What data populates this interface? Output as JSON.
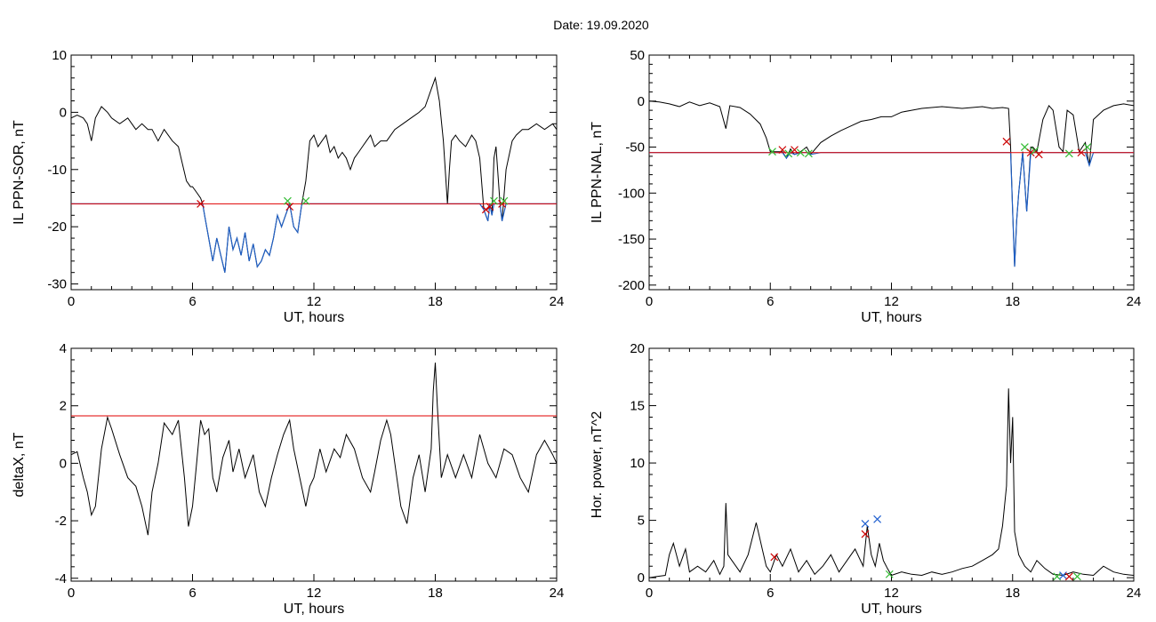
{
  "date_label": "Date:  19.09.2020",
  "colors": {
    "trace": "#000000",
    "below_threshold": "#1f5fc4",
    "threshold": "#e00000",
    "marker_red": "#cc0000",
    "marker_green": "#33bb33",
    "marker_blue": "#2060d0"
  },
  "chart_data": [
    {
      "type": "line",
      "title": "",
      "xlabel": "UT, hours",
      "ylabel": "IL PPN-SOR, nT",
      "xlim": [
        0,
        24
      ],
      "ylim": [
        -31,
        10
      ],
      "xticks": [
        0,
        6,
        12,
        18,
        24
      ],
      "yticks": [
        -30,
        -20,
        -10,
        0,
        10
      ],
      "threshold": -16,
      "series": [
        {
          "x": [
            0,
            0.3,
            0.6,
            0.8,
            1.0,
            1.2,
            1.5,
            1.8,
            2.0,
            2.4,
            2.8,
            3.2,
            3.5,
            3.8,
            4.0,
            4.3,
            4.6,
            5.0,
            5.3,
            5.5,
            5.7,
            5.9,
            6.0,
            6.2,
            6.4,
            6.5,
            6.6,
            6.8,
            7.0,
            7.2,
            7.4,
            7.6,
            7.8,
            8.0,
            8.2,
            8.4,
            8.6,
            8.8,
            9.0,
            9.2,
            9.4,
            9.6,
            9.8,
            10.0,
            10.2,
            10.4,
            10.6,
            10.8,
            11.0,
            11.2,
            11.4,
            11.6,
            11.8,
            12.0,
            12.2,
            12.4,
            12.6,
            12.8,
            13.0,
            13.2,
            13.4,
            13.6,
            13.8,
            14.0,
            14.2,
            14.4,
            14.6,
            14.8,
            15.0,
            15.3,
            15.6,
            16.0,
            16.4,
            16.8,
            17.2,
            17.5,
            17.8,
            18.0,
            18.2,
            18.4,
            18.6,
            18.7,
            18.8,
            19.0,
            19.2,
            19.5,
            19.8,
            20.0,
            20.2,
            20.4,
            20.5,
            20.6,
            20.7,
            20.8,
            20.9,
            21.0,
            21.2,
            21.3,
            21.5,
            21.8,
            22.0,
            22.3,
            22.6,
            23.0,
            23.4,
            23.8,
            24
          ],
          "values": [
            -1,
            -0.5,
            -1,
            -2,
            -5,
            -1,
            1,
            0,
            -1,
            -2,
            -1,
            -3,
            -2,
            -3,
            -3,
            -5,
            -3,
            -5,
            -6,
            -9,
            -12,
            -13,
            -13,
            -14,
            -15,
            -16,
            -18,
            -22,
            -26,
            -22,
            -25,
            -28,
            -20,
            -24,
            -22,
            -25,
            -21,
            -26,
            -23,
            -27,
            -26,
            -24,
            -25,
            -22,
            -18,
            -20,
            -18,
            -16,
            -20,
            -21,
            -16,
            -12,
            -5,
            -4,
            -6,
            -5,
            -4,
            -7,
            -6,
            -8,
            -7,
            -8,
            -10,
            -8,
            -7,
            -6,
            -5,
            -4,
            -6,
            -5,
            -5,
            -3,
            -2,
            -1,
            0,
            1,
            4,
            6,
            2,
            -5,
            -16,
            -10,
            -5,
            -4,
            -5,
            -6,
            -4,
            -5,
            -8,
            -17,
            -18,
            -19,
            -16,
            -18,
            -8,
            -6,
            -16,
            -19,
            -10,
            -5,
            -4,
            -3,
            -3,
            -2,
            -3,
            -2,
            -3
          ]
        }
      ],
      "markers": [
        {
          "x": 6.4,
          "y": -16,
          "color": "red"
        },
        {
          "x": 10.7,
          "y": -15.5,
          "color": "green"
        },
        {
          "x": 10.8,
          "y": -16.5,
          "color": "red"
        },
        {
          "x": 11.6,
          "y": -15.5,
          "color": "green"
        },
        {
          "x": 20.5,
          "y": -17,
          "color": "red"
        },
        {
          "x": 20.7,
          "y": -16.5,
          "color": "red"
        },
        {
          "x": 20.9,
          "y": -15.5,
          "color": "green"
        },
        {
          "x": 21.3,
          "y": -16,
          "color": "red"
        },
        {
          "x": 21.4,
          "y": -15.5,
          "color": "green"
        }
      ]
    },
    {
      "type": "line",
      "title": "",
      "xlabel": "UT, hours",
      "ylabel": "IL PPN-NAL, nT",
      "xlim": [
        0,
        24
      ],
      "ylim": [
        -205,
        50
      ],
      "xticks": [
        0,
        6,
        12,
        18,
        24
      ],
      "yticks": [
        -200,
        -150,
        -100,
        -50,
        0,
        50
      ],
      "threshold": -56,
      "series": [
        {
          "x": [
            0,
            0.5,
            1.0,
            1.5,
            2.0,
            2.5,
            3.0,
            3.5,
            3.8,
            4.0,
            4.5,
            5.0,
            5.5,
            5.8,
            6.0,
            6.3,
            6.6,
            6.8,
            7.0,
            7.2,
            7.5,
            7.8,
            8.0,
            8.5,
            9.0,
            9.5,
            10.0,
            10.5,
            11.0,
            11.5,
            12.0,
            12.5,
            13.0,
            13.5,
            14.0,
            14.5,
            15.0,
            15.5,
            16.0,
            16.5,
            17.0,
            17.5,
            17.8,
            17.9,
            18.0,
            18.1,
            18.2,
            18.3,
            18.5,
            18.7,
            18.9,
            19.0,
            19.2,
            19.5,
            19.8,
            20.0,
            20.3,
            20.5,
            20.7,
            21.0,
            21.3,
            21.6,
            21.8,
            22.0,
            22.5,
            23.0,
            23.5,
            24
          ],
          "values": [
            0,
            -1,
            -3,
            -6,
            -1,
            -5,
            -2,
            -6,
            -30,
            -5,
            -7,
            -14,
            -25,
            -40,
            -55,
            -55,
            -55,
            -62,
            -52,
            -58,
            -55,
            -50,
            -58,
            -45,
            -38,
            -32,
            -27,
            -22,
            -20,
            -17,
            -17,
            -12,
            -10,
            -8,
            -7,
            -6,
            -7,
            -8,
            -7,
            -6,
            -8,
            -7,
            -8,
            -50,
            -120,
            -180,
            -130,
            -100,
            -55,
            -120,
            -50,
            -50,
            -55,
            -20,
            -5,
            -10,
            -50,
            -55,
            -10,
            -15,
            -55,
            -45,
            -70,
            -20,
            -10,
            -5,
            -3,
            -5
          ]
        }
      ],
      "markers": [
        {
          "x": 6.1,
          "y": -55,
          "color": "green"
        },
        {
          "x": 6.6,
          "y": -53,
          "color": "red"
        },
        {
          "x": 6.9,
          "y": -57,
          "color": "green"
        },
        {
          "x": 7.2,
          "y": -53,
          "color": "red"
        },
        {
          "x": 7.5,
          "y": -56,
          "color": "green"
        },
        {
          "x": 7.9,
          "y": -57,
          "color": "green"
        },
        {
          "x": 17.7,
          "y": -44,
          "color": "red"
        },
        {
          "x": 18.6,
          "y": -50,
          "color": "green"
        },
        {
          "x": 18.9,
          "y": -56,
          "color": "red"
        },
        {
          "x": 19.1,
          "y": -54,
          "color": "green"
        },
        {
          "x": 19.3,
          "y": -58,
          "color": "red"
        },
        {
          "x": 20.8,
          "y": -57,
          "color": "green"
        },
        {
          "x": 21.4,
          "y": -56,
          "color": "red"
        },
        {
          "x": 21.7,
          "y": -50,
          "color": "green"
        }
      ]
    },
    {
      "type": "line",
      "title": "",
      "xlabel": "UT, hours",
      "ylabel": "deltaX, nT",
      "xlim": [
        0,
        24
      ],
      "ylim": [
        -4.1,
        4
      ],
      "xticks": [
        0,
        6,
        12,
        18,
        24
      ],
      "yticks": [
        -4,
        -2,
        0,
        2,
        4
      ],
      "threshold": 1.65,
      "series": [
        {
          "x": [
            0,
            0.3,
            0.6,
            0.8,
            1.0,
            1.2,
            1.5,
            1.8,
            2.0,
            2.4,
            2.8,
            3.2,
            3.5,
            3.8,
            4.0,
            4.3,
            4.6,
            5.0,
            5.3,
            5.6,
            5.8,
            6.0,
            6.2,
            6.4,
            6.6,
            6.8,
            7.0,
            7.2,
            7.5,
            7.8,
            8.0,
            8.3,
            8.6,
            9.0,
            9.3,
            9.6,
            9.9,
            10.2,
            10.5,
            10.8,
            11.0,
            11.3,
            11.6,
            11.8,
            12.0,
            12.3,
            12.6,
            13.0,
            13.3,
            13.6,
            14.0,
            14.4,
            14.8,
            15.0,
            15.3,
            15.6,
            15.8,
            16.0,
            16.3,
            16.6,
            16.9,
            17.2,
            17.5,
            17.8,
            17.9,
            18.0,
            18.1,
            18.3,
            18.6,
            19.0,
            19.4,
            19.8,
            20.2,
            20.6,
            21.0,
            21.4,
            21.8,
            22.2,
            22.6,
            23.0,
            23.4,
            23.8,
            24
          ],
          "values": [
            0.3,
            0.4,
            -0.5,
            -1.0,
            -1.8,
            -1.5,
            0.5,
            1.6,
            1.2,
            0.3,
            -0.5,
            -0.8,
            -1.5,
            -2.5,
            -1.0,
            0.0,
            1.4,
            1.0,
            1.5,
            -0.5,
            -2.2,
            -1.5,
            0.0,
            1.5,
            1.0,
            1.2,
            -0.5,
            -1.0,
            0.2,
            0.8,
            -0.3,
            0.5,
            -0.5,
            0.3,
            -1.0,
            -1.5,
            -0.5,
            0.3,
            1.0,
            1.5,
            0.5,
            -0.5,
            -1.5,
            -0.8,
            -0.5,
            0.5,
            -0.3,
            0.5,
            0.2,
            1.0,
            0.5,
            -0.5,
            -1.0,
            -0.3,
            0.8,
            1.5,
            1.0,
            0.0,
            -1.5,
            -2.1,
            -0.5,
            0.3,
            -1.0,
            0.5,
            2.5,
            3.5,
            2.0,
            -0.5,
            0.3,
            -0.5,
            0.3,
            -0.5,
            1.0,
            0.0,
            -0.5,
            0.5,
            0.3,
            -0.5,
            -1.0,
            0.3,
            0.8,
            0.3,
            0.0
          ]
        }
      ],
      "markers": []
    },
    {
      "type": "line",
      "title": "",
      "xlabel": "UT, hours",
      "ylabel": "Hor. power, nT^2",
      "xlim": [
        0,
        24
      ],
      "ylim": [
        -0.3,
        20
      ],
      "xticks": [
        0,
        6,
        12,
        18,
        24
      ],
      "yticks": [
        0,
        5,
        10,
        15,
        20
      ],
      "threshold": null,
      "series": [
        {
          "x": [
            0,
            0.4,
            0.8,
            1.0,
            1.2,
            1.5,
            1.8,
            2.0,
            2.4,
            2.8,
            3.2,
            3.5,
            3.7,
            3.8,
            3.9,
            4.1,
            4.5,
            4.9,
            5.3,
            5.6,
            5.8,
            6.0,
            6.3,
            6.6,
            7.0,
            7.4,
            7.8,
            8.2,
            8.6,
            9.0,
            9.4,
            9.8,
            10.2,
            10.6,
            10.8,
            11.0,
            11.2,
            11.4,
            11.6,
            11.8,
            12.0,
            12.5,
            13.0,
            13.5,
            14.0,
            14.5,
            15.0,
            15.5,
            16.0,
            16.5,
            17.0,
            17.3,
            17.5,
            17.7,
            17.8,
            17.9,
            18.0,
            18.1,
            18.3,
            18.6,
            18.9,
            19.2,
            19.6,
            20.0,
            20.5,
            21.0,
            21.5,
            22.0,
            22.5,
            23.0,
            23.5,
            24
          ],
          "values": [
            0,
            0.1,
            0.2,
            2.0,
            3.0,
            1.0,
            2.5,
            0.5,
            1.0,
            0.5,
            1.5,
            0.3,
            1.0,
            6.5,
            2.0,
            1.5,
            0.5,
            2.0,
            4.8,
            2.5,
            1.0,
            0.5,
            2.0,
            1.0,
            2.5,
            0.5,
            1.5,
            0.3,
            1.0,
            2.0,
            0.5,
            1.5,
            2.5,
            1.0,
            4.5,
            2.0,
            1.0,
            3.0,
            1.5,
            0.8,
            0.2,
            0.5,
            0.3,
            0.2,
            0.5,
            0.3,
            0.5,
            0.8,
            1.0,
            1.5,
            2.0,
            2.5,
            4.5,
            8.0,
            16.5,
            10.0,
            14.0,
            4.0,
            2.0,
            1.0,
            0.5,
            1.5,
            0.8,
            0.3,
            0.2,
            0.5,
            0.3,
            0.2,
            1.0,
            0.5,
            0.3,
            0.2
          ]
        }
      ],
      "markers": [
        {
          "x": 6.2,
          "y": 1.8,
          "color": "red"
        },
        {
          "x": 10.7,
          "y": 3.8,
          "color": "red"
        },
        {
          "x": 10.7,
          "y": 4.7,
          "color": "blue"
        },
        {
          "x": 11.3,
          "y": 5.1,
          "color": "blue"
        },
        {
          "x": 11.9,
          "y": 0.3,
          "color": "green"
        },
        {
          "x": 20.2,
          "y": 0.1,
          "color": "green"
        },
        {
          "x": 20.5,
          "y": 0.2,
          "color": "blue"
        },
        {
          "x": 20.8,
          "y": 0.1,
          "color": "red"
        },
        {
          "x": 21.2,
          "y": 0.1,
          "color": "green"
        }
      ]
    }
  ]
}
